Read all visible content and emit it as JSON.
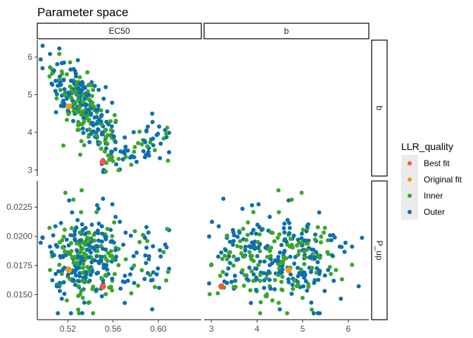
{
  "chart_data": {
    "type": "scatter",
    "title": "Parameter space",
    "facet_columns": [
      "EC50",
      "b"
    ],
    "facet_rows": [
      "b",
      "P_up"
    ],
    "axes": {
      "EC50": {
        "range": [
          0.493,
          0.638
        ],
        "ticks": [
          0.52,
          0.56,
          0.6
        ],
        "tick_labels": [
          "0.52",
          "0.56",
          "0.60"
        ]
      },
      "b": {
        "range": [
          2.84,
          6.45
        ],
        "ticks": [
          3,
          4,
          5,
          6
        ],
        "tick_labels": [
          "3",
          "4",
          "5",
          "6"
        ]
      },
      "P_up": {
        "range": [
          0.01285,
          0.02475
        ],
        "ticks": [
          0.015,
          0.0175,
          0.02,
          0.0225
        ],
        "tick_labels": [
          "0.0150",
          "0.0175",
          "0.0200",
          "0.0225"
        ]
      }
    },
    "legend": {
      "title": "LLR_quality",
      "position": "right",
      "entries": [
        {
          "label": "Best fit",
          "color": "#f05a3c"
        },
        {
          "label": "Original fit",
          "color": "#f39c12"
        },
        {
          "label": "Inner",
          "color": "#3aa62a"
        },
        {
          "label": "Outer",
          "color": "#0d6fae"
        }
      ]
    },
    "grid": false,
    "key_points": {
      "Best fit": {
        "EC50": 0.551,
        "b": 3.22,
        "P_up": 0.0157
      },
      "Original fit": {
        "EC50": 0.521,
        "b": 4.69,
        "P_up": 0.0171
      }
    },
    "n_points": {
      "Inner": 140,
      "Outer": 210
    }
  }
}
